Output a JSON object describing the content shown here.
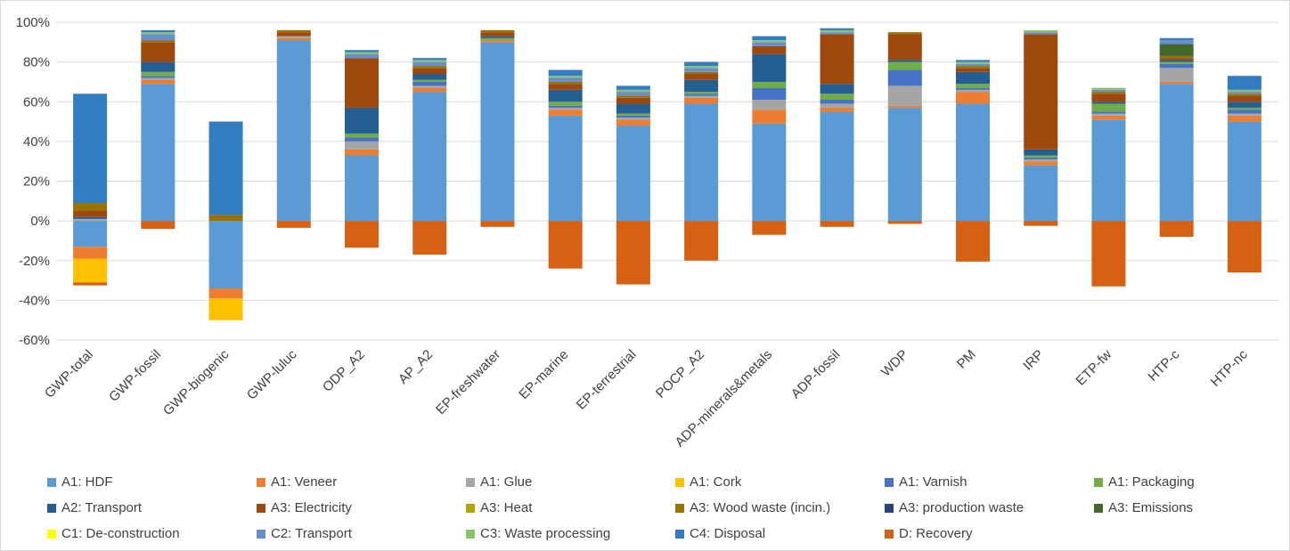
{
  "chart_data": {
    "type": "bar",
    "stacked": true,
    "ylim": [
      -60,
      100
    ],
    "yticks": [
      "100%",
      "80%",
      "60%",
      "40%",
      "20%",
      "0%",
      "-20%",
      "-40%",
      "-60%"
    ],
    "grid": true,
    "legend_position": "bottom",
    "categories": [
      "GWP-total",
      "GWP-fossil",
      "GWP-biogenic",
      "GWP-luluc",
      "ODP_A2",
      "AP_A2",
      "EP-freshwater",
      "EP-marine",
      "EP-terrestrial",
      "POCP_A2",
      "ADP-minerals&metals",
      "ADP-fossil",
      "WDP",
      "PM",
      "IRP",
      "ETP-fw",
      "HTP-c",
      "HTP-nc"
    ],
    "series": [
      {
        "name": "A1: HDF",
        "color": "#5B9BD5",
        "values": [
          -13,
          69,
          -34,
          91,
          33,
          65,
          90,
          53,
          48,
          59,
          49,
          55,
          57,
          59,
          28,
          51,
          69,
          50
        ]
      },
      {
        "name": "A1: Veneer",
        "color": "#ED7D31",
        "values": [
          -6,
          2,
          -5,
          1,
          3,
          2,
          1,
          3,
          3,
          3,
          7,
          2,
          1,
          6,
          2,
          2,
          1,
          3
        ]
      },
      {
        "name": "A1: Glue",
        "color": "#A5A5A5",
        "values": [
          1,
          1,
          0,
          1,
          4,
          1,
          0,
          1,
          1,
          1,
          5,
          2,
          10,
          1,
          1,
          1,
          7,
          1
        ]
      },
      {
        "name": "A1: Cork",
        "color": "#FFC000",
        "values": [
          -12,
          0,
          -11,
          0,
          0,
          0,
          0,
          0,
          0,
          0,
          0,
          0,
          0,
          0,
          0,
          0,
          0,
          0
        ]
      },
      {
        "name": "A1: Varnish",
        "color": "#4472C4",
        "values": [
          0,
          1,
          0,
          0,
          2,
          2,
          0,
          1,
          1,
          1,
          6,
          2,
          8,
          1,
          1,
          1,
          2,
          2
        ]
      },
      {
        "name": "A1: Packaging",
        "color": "#70AD47",
        "values": [
          0,
          2,
          0,
          0,
          2,
          1,
          1,
          2,
          1,
          1,
          3,
          3,
          4,
          2,
          1,
          4,
          1,
          1
        ]
      },
      {
        "name": "A2: Transport",
        "color": "#255E91",
        "values": [
          1,
          5,
          0,
          0,
          13,
          3,
          1,
          6,
          5,
          6,
          14,
          5,
          1,
          6,
          3,
          1,
          1,
          3
        ]
      },
      {
        "name": "A3: Electricity",
        "color": "#9E480E",
        "values": [
          3,
          10,
          0,
          2,
          25,
          3,
          2,
          3,
          3,
          3,
          4,
          25,
          13,
          2,
          58,
          4,
          1,
          3
        ]
      },
      {
        "name": "A3: Heat",
        "color": "#B5A300",
        "values": [
          0,
          0,
          0,
          0,
          0,
          0,
          0,
          0,
          0,
          0,
          0,
          0,
          0,
          0,
          0,
          0,
          0,
          0
        ]
      },
      {
        "name": "A3: Wood waste (incin.)",
        "color": "#997300",
        "values": [
          4,
          1,
          3,
          1,
          0,
          1,
          1,
          1,
          1,
          1,
          0,
          0,
          1,
          1,
          0,
          1,
          1,
          1
        ]
      },
      {
        "name": "A3: production waste",
        "color": "#264478",
        "values": [
          0,
          0,
          0,
          0,
          0,
          0,
          0,
          0,
          0,
          0,
          0,
          0,
          0,
          0,
          0,
          0,
          0,
          0
        ]
      },
      {
        "name": "A3: Emissions",
        "color": "#43682B",
        "values": [
          0,
          0,
          0,
          0,
          0,
          0,
          0,
          0,
          0,
          0,
          0,
          0,
          0,
          0,
          0,
          0,
          6,
          0
        ]
      },
      {
        "name": "C1: De-construction",
        "color": "#FFFF00",
        "values": [
          0,
          0,
          0,
          0,
          0,
          0,
          0,
          0,
          0,
          0,
          0,
          0,
          0,
          0,
          0,
          0,
          0,
          0
        ]
      },
      {
        "name": "C2: Transport",
        "color": "#698ED0",
        "values": [
          0,
          3,
          0,
          0,
          2,
          2,
          0,
          2,
          2,
          2,
          2,
          1,
          0,
          1,
          1,
          1,
          2,
          1
        ]
      },
      {
        "name": "C3: Waste processing",
        "color": "#8CC168",
        "values": [
          0,
          1,
          0,
          0,
          1,
          1,
          0,
          1,
          1,
          1,
          1,
          1,
          0,
          1,
          1,
          1,
          0,
          1
        ]
      },
      {
        "name": "C4: Disposal",
        "color": "#327DC2",
        "values": [
          55,
          1,
          47,
          0,
          1,
          1,
          0,
          3,
          2,
          2,
          2,
          1,
          0,
          1,
          0,
          0,
          1,
          7
        ]
      },
      {
        "name": "D: Recovery",
        "color": "#D66013",
        "values": [
          -1.5,
          -4,
          0,
          -3.5,
          -13.5,
          -17,
          -3,
          -24,
          -32,
          -20,
          -7,
          -3,
          -1.5,
          -20.5,
          -2.5,
          -33,
          -8,
          -26
        ]
      }
    ]
  }
}
